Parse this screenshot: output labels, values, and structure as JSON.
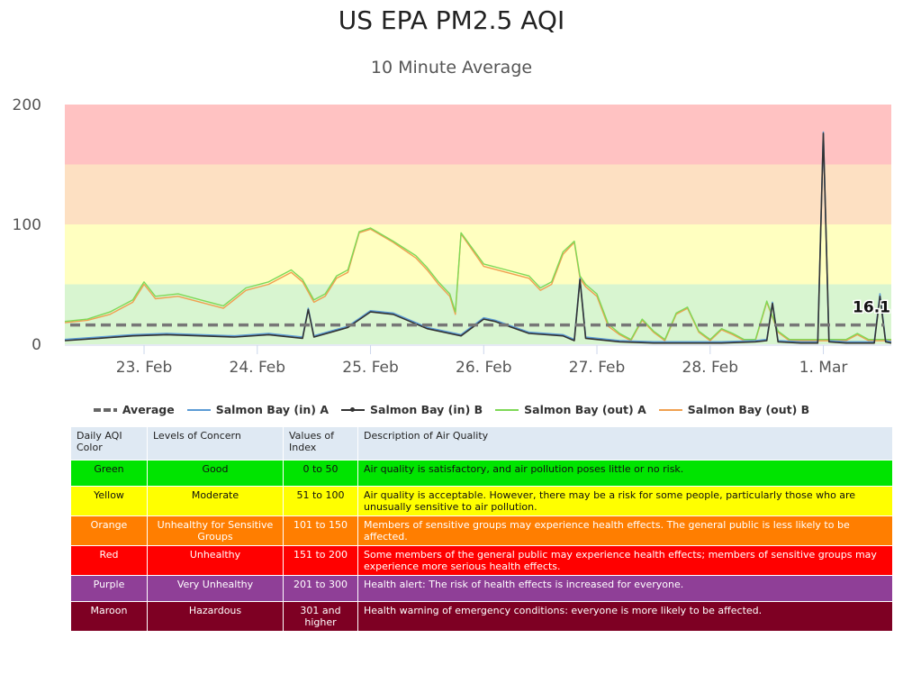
{
  "title": "US EPA PM2.5 AQI",
  "subtitle": "10 Minute Average",
  "last_value_label": "16.1",
  "legend": [
    {
      "name": "Average",
      "color": "#666666",
      "style": "dashed"
    },
    {
      "name": "Salmon Bay (in) A",
      "color": "#5b9bd5",
      "style": "line"
    },
    {
      "name": "Salmon Bay (in) B",
      "color": "#333333",
      "style": "line-marker"
    },
    {
      "name": "Salmon Bay (out) A",
      "color": "#7ed957",
      "style": "line"
    },
    {
      "name": "Salmon Bay (out) B",
      "color": "#f0a050",
      "style": "line"
    }
  ],
  "chart_data": {
    "type": "line",
    "title": "US EPA PM2.5 AQI",
    "subtitle": "10 Minute Average",
    "ylim": [
      0,
      200
    ],
    "y_ticks": [
      "0",
      "100",
      "200"
    ],
    "x_ticks": [
      "23. Feb",
      "24. Feb",
      "25. Feb",
      "26. Feb",
      "27. Feb",
      "28. Feb",
      "1. Mar"
    ],
    "x_range_days": [
      22.3,
      29.6
    ],
    "bands": [
      {
        "from": 0,
        "to": 50,
        "color": "#d8f5d0"
      },
      {
        "from": 50,
        "to": 100,
        "color": "#ffffc0"
      },
      {
        "from": 100,
        "to": 150,
        "color": "#fde0c2"
      },
      {
        "from": 150,
        "to": 200,
        "color": "#ffc2c2"
      }
    ],
    "average": 16.1,
    "series": [
      {
        "name": "Salmon Bay (out) B",
        "color": "#f0a050",
        "x": [
          22.3,
          22.5,
          22.7,
          22.9,
          23.0,
          23.1,
          23.3,
          23.5,
          23.7,
          23.9,
          24.1,
          24.3,
          24.4,
          24.5,
          24.6,
          24.7,
          24.8,
          24.9,
          25.0,
          25.2,
          25.4,
          25.5,
          25.6,
          25.7,
          25.75,
          25.8,
          26.0,
          26.2,
          26.4,
          26.5,
          26.6,
          26.7,
          26.8,
          26.85,
          26.9,
          27.0,
          27.1,
          27.2,
          27.3,
          27.4,
          27.5,
          27.6,
          27.7,
          27.8,
          27.9,
          28.0,
          28.1,
          28.2,
          28.3,
          28.4,
          28.5,
          28.6,
          28.7,
          28.8,
          28.9,
          29.0,
          29.1,
          29.2,
          29.3,
          29.4,
          29.5,
          29.6
        ],
        "y": [
          18,
          20,
          25,
          35,
          50,
          38,
          40,
          35,
          30,
          45,
          50,
          60,
          52,
          35,
          40,
          55,
          60,
          93,
          96,
          85,
          72,
          62,
          50,
          40,
          25,
          92,
          65,
          60,
          55,
          45,
          50,
          75,
          85,
          55,
          48,
          40,
          15,
          8,
          3,
          20,
          10,
          3,
          25,
          30,
          10,
          3,
          12,
          8,
          3,
          3,
          35,
          10,
          3,
          3,
          3,
          3,
          3,
          3,
          8,
          3,
          3,
          3
        ]
      },
      {
        "name": "Salmon Bay (out) A",
        "color": "#7ed957",
        "x": [
          22.3,
          22.5,
          22.7,
          22.9,
          23.0,
          23.1,
          23.3,
          23.5,
          23.7,
          23.9,
          24.1,
          24.3,
          24.4,
          24.5,
          24.6,
          24.7,
          24.8,
          24.9,
          25.0,
          25.2,
          25.4,
          25.5,
          25.6,
          25.7,
          25.75,
          25.8,
          26.0,
          26.2,
          26.4,
          26.5,
          26.6,
          26.7,
          26.8,
          26.85,
          26.9,
          27.0,
          27.1,
          27.2,
          27.3,
          27.4,
          27.5,
          27.6,
          27.7,
          27.8,
          27.9,
          28.0,
          28.1,
          28.2,
          28.3,
          28.4,
          28.5,
          28.6,
          28.7,
          28.8,
          28.9,
          29.0,
          29.1,
          29.2,
          29.3,
          29.4,
          29.5,
          29.6
        ],
        "y": [
          19,
          21,
          27,
          37,
          52,
          40,
          42,
          37,
          32,
          47,
          52,
          62,
          54,
          37,
          42,
          57,
          62,
          94,
          97,
          86,
          74,
          64,
          52,
          42,
          27,
          93,
          67,
          62,
          57,
          47,
          52,
          77,
          86,
          57,
          50,
          42,
          17,
          9,
          4,
          21,
          11,
          4,
          26,
          31,
          11,
          4,
          13,
          9,
          4,
          4,
          36,
          11,
          4,
          4,
          4,
          4,
          4,
          4,
          9,
          4,
          4,
          4
        ]
      },
      {
        "name": "Salmon Bay (in) A",
        "color": "#5b9bd5",
        "x": [
          22.3,
          22.6,
          22.9,
          23.2,
          23.5,
          23.8,
          24.1,
          24.4,
          24.45,
          24.5,
          24.8,
          25.0,
          25.2,
          25.5,
          25.8,
          26.0,
          26.1,
          26.4,
          26.7,
          26.8,
          26.85,
          26.9,
          27.2,
          27.5,
          27.8,
          28.1,
          28.4,
          28.5,
          28.55,
          28.6,
          28.8,
          28.95,
          29.0,
          29.05,
          29.2,
          29.45,
          29.5,
          29.55,
          29.6
        ],
        "y": [
          4,
          6,
          8,
          9,
          8,
          7,
          9,
          6,
          30,
          7,
          15,
          28,
          26,
          14,
          8,
          22,
          20,
          10,
          8,
          4,
          55,
          6,
          3,
          2,
          2,
          2,
          3,
          4,
          35,
          3,
          2,
          2,
          177,
          3,
          2,
          2,
          42,
          3,
          2
        ]
      },
      {
        "name": "Salmon Bay (in) B",
        "color": "#333333",
        "x": [
          22.3,
          22.6,
          22.9,
          23.2,
          23.5,
          23.8,
          24.1,
          24.4,
          24.45,
          24.5,
          24.8,
          25.0,
          25.2,
          25.5,
          25.8,
          26.0,
          26.1,
          26.4,
          26.7,
          26.8,
          26.85,
          26.9,
          27.2,
          27.5,
          27.8,
          28.1,
          28.4,
          28.5,
          28.55,
          28.6,
          28.8,
          28.95,
          29.0,
          29.05,
          29.2,
          29.45,
          29.5,
          29.55,
          29.6
        ],
        "y": [
          3,
          5,
          7,
          8,
          7,
          6,
          8,
          5,
          29,
          6,
          14,
          27,
          25,
          13,
          7,
          21,
          19,
          9,
          7,
          3,
          54,
          5,
          2,
          1,
          1,
          1,
          2,
          3,
          34,
          2,
          1,
          1,
          176,
          2,
          1,
          1,
          40,
          2,
          1
        ]
      }
    ]
  },
  "table": {
    "headers": [
      "Daily AQI Color",
      "Levels of Concern",
      "Values of Index",
      "Description of Air Quality"
    ],
    "rows": [
      {
        "color": "Green",
        "level": "Good",
        "range": "0 to 50",
        "desc": "Air quality is satisfactory, and air pollution poses little or no risk.",
        "bg": "#00e400",
        "fg": "#111111"
      },
      {
        "color": "Yellow",
        "level": "Moderate",
        "range": "51 to 100",
        "desc": "Air quality is acceptable. However, there may be a risk for some people, particularly those who are unusually sensitive to air pollution.",
        "bg": "#ffff00",
        "fg": "#111111"
      },
      {
        "color": "Orange",
        "level": "Unhealthy for Sensitive Groups",
        "range": "101 to 150",
        "desc": "Members of sensitive groups may experience health effects. The general public is less likely to be affected.",
        "bg": "#ff7e00",
        "fg": "#ffffff"
      },
      {
        "color": "Red",
        "level": "Unhealthy",
        "range": "151 to 200",
        "desc": "Some members of the general public may experience health effects; members of sensitive groups may experience more serious health effects.",
        "bg": "#ff0000",
        "fg": "#ffffff"
      },
      {
        "color": "Purple",
        "level": "Very Unhealthy",
        "range": "201 to 300",
        "desc": "Health alert: The risk of health effects is increased for everyone.",
        "bg": "#8f3f97",
        "fg": "#ffffff"
      },
      {
        "color": "Maroon",
        "level": "Hazardous",
        "range": "301 and higher",
        "desc": "Health warning of emergency conditions: everyone is more likely to be affected.",
        "bg": "#7e0023",
        "fg": "#ffffff"
      }
    ]
  }
}
